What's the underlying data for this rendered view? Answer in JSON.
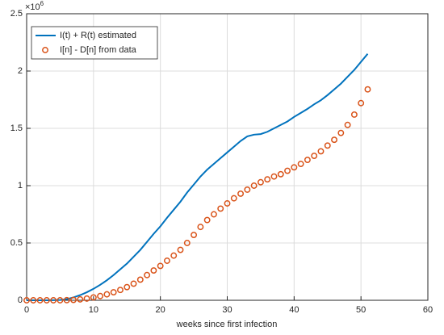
{
  "chart_data": {
    "type": "line",
    "xlabel": "weeks since first infection",
    "y_multiplier": {
      "base": "×10",
      "exponent": "6"
    },
    "xlim": [
      0,
      60
    ],
    "xticks": [
      0,
      10,
      20,
      30,
      40,
      50,
      60
    ],
    "ylim": [
      0,
      2.5
    ],
    "yticks": [
      0,
      0.5,
      1,
      1.5,
      2,
      2.5
    ],
    "grid": true,
    "legend": "upper left",
    "x": [
      0,
      1,
      2,
      3,
      4,
      5,
      6,
      7,
      8,
      9,
      10,
      11,
      12,
      13,
      14,
      15,
      16,
      17,
      18,
      19,
      20,
      21,
      22,
      23,
      24,
      25,
      26,
      27,
      28,
      29,
      30,
      31,
      32,
      33,
      34,
      35,
      36,
      37,
      38,
      39,
      40,
      41,
      42,
      43,
      44,
      45,
      46,
      47,
      48,
      49,
      50,
      51
    ],
    "series": [
      {
        "name": "I(t) + R(t) estimated",
        "color": "#0072bd",
        "style": "line",
        "values": [
          0,
          0,
          0,
          0,
          0.001,
          0.003,
          0.01,
          0.025,
          0.045,
          0.07,
          0.1,
          0.135,
          0.175,
          0.22,
          0.27,
          0.32,
          0.38,
          0.44,
          0.51,
          0.58,
          0.645,
          0.72,
          0.79,
          0.86,
          0.94,
          1.01,
          1.08,
          1.14,
          1.19,
          1.24,
          1.29,
          1.34,
          1.39,
          1.43,
          1.445,
          1.45,
          1.47,
          1.5,
          1.53,
          1.56,
          1.6,
          1.635,
          1.67,
          1.71,
          1.745,
          1.79,
          1.84,
          1.89,
          1.95,
          2.01,
          2.08,
          2.15
        ]
      },
      {
        "name": "I[n] - D[n] from data",
        "color": "#d95319",
        "style": "markers",
        "values": [
          0,
          0,
          0,
          0,
          0,
          0,
          0.001,
          0.003,
          0.008,
          0.015,
          0.025,
          0.037,
          0.052,
          0.07,
          0.09,
          0.115,
          0.145,
          0.18,
          0.22,
          0.26,
          0.3,
          0.345,
          0.39,
          0.44,
          0.5,
          0.57,
          0.64,
          0.7,
          0.75,
          0.8,
          0.845,
          0.89,
          0.93,
          0.965,
          1.0,
          1.03,
          1.055,
          1.08,
          1.1,
          1.13,
          1.16,
          1.19,
          1.225,
          1.26,
          1.3,
          1.35,
          1.4,
          1.46,
          1.53,
          1.62,
          1.72,
          1.84
        ]
      }
    ]
  }
}
